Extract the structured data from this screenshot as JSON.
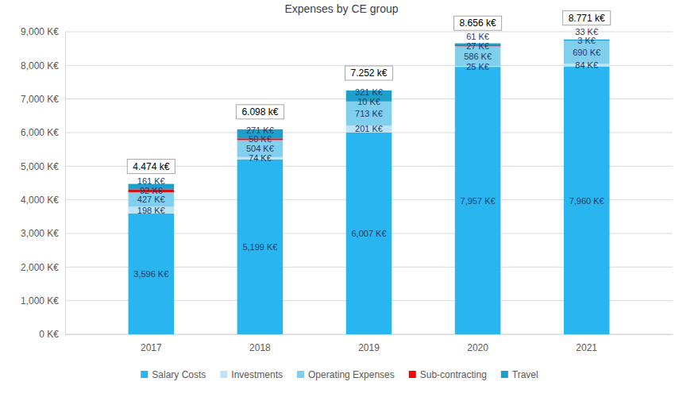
{
  "chart_data": {
    "type": "bar",
    "title": "Expenses by CE group",
    "categories": [
      "2017",
      "2018",
      "2019",
      "2020",
      "2021"
    ],
    "series": [
      {
        "name": "Salary Costs",
        "color": "#29b6f0",
        "values": [
          3596,
          5199,
          6007,
          7957,
          7960
        ],
        "value_labels": [
          "3,596 K€",
          "5,199 K€",
          "6,007 K€",
          "7,957 K€",
          "7,960 K€"
        ]
      },
      {
        "name": "Investments",
        "color": "#bde4f6",
        "values": [
          198,
          74,
          201,
          25,
          84
        ],
        "value_labels": [
          "198 K€",
          "74 K€",
          "201 K€",
          "25 K€",
          "84 K€"
        ]
      },
      {
        "name": "Operating Expenses",
        "color": "#80cfee",
        "values": [
          427,
          504,
          713,
          586,
          690
        ],
        "value_labels": [
          "427 K€",
          "504 K€",
          "713 K€",
          "586 K€",
          "690 K€"
        ]
      },
      {
        "name": "Sub-contracting",
        "color": "#ff0000",
        "values": [
          92,
          50,
          10,
          27,
          3
        ],
        "value_labels": [
          "92 K€",
          "50 K€",
          "10 K€",
          "27 K€",
          "3 K€"
        ]
      },
      {
        "name": "Travel",
        "color": "#1d9fca",
        "values": [
          161,
          271,
          321,
          61,
          33
        ],
        "value_labels": [
          "161 K€",
          "271 K€",
          "321 K€",
          "61 K€",
          "33 K€"
        ]
      }
    ],
    "totals": {
      "values": [
        4474,
        6098,
        7252,
        8656,
        8771
      ],
      "value_labels": [
        "4.474 k€",
        "6.098 k€",
        "7.252 k€",
        "8.656 k€",
        "8.771 k€"
      ]
    },
    "ylim": [
      0,
      9000
    ],
    "yticks": [
      {
        "value": 0,
        "label": "0 K€"
      },
      {
        "value": 1000,
        "label": "1,000 K€"
      },
      {
        "value": 2000,
        "label": "2,000 K€"
      },
      {
        "value": 3000,
        "label": "3,000 K€"
      },
      {
        "value": 4000,
        "label": "4,000 K€"
      },
      {
        "value": 5000,
        "label": "5,000 K€"
      },
      {
        "value": 6000,
        "label": "6,000 K€"
      },
      {
        "value": 7000,
        "label": "7,000 K€"
      },
      {
        "value": 8000,
        "label": "8,000 K€"
      },
      {
        "value": 9000,
        "label": "9,000 K€"
      }
    ],
    "grid": true,
    "stacked": true,
    "data_labels": true,
    "legend": "bottom"
  }
}
